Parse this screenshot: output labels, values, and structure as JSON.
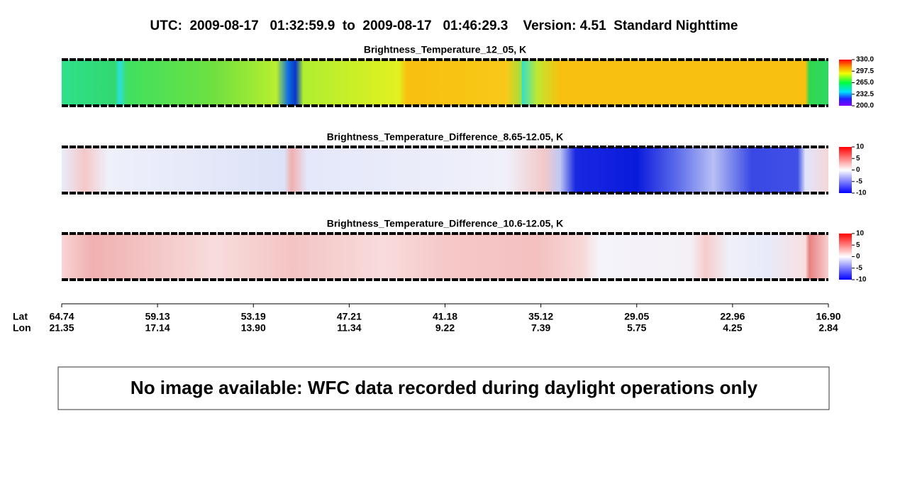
{
  "title": "UTC:  2009-08-17   01:32:59.9  to  2009-08-17   01:46:29.3    Version: 4.51  Standard Nighttime",
  "panels": [
    {
      "title": "Brightness_Temperature_12_05, K",
      "clim": [
        200,
        330
      ],
      "cticks": [
        {
          "value": 330,
          "label": "330.0"
        },
        297.5,
        {
          "value": 265,
          "label": "265.0"
        },
        232.5,
        {
          "value": 200,
          "label": "200.0"
        }
      ]
    },
    {
      "title": "Brightness_Temperature_Difference_8.65-12.05, K",
      "clim": [
        -10,
        10
      ],
      "cticks": [
        10,
        5,
        0,
        -5,
        -10
      ]
    },
    {
      "title": "Brightness_Temperature_Difference_10.6-12.05, K",
      "clim": [
        -10,
        10
      ],
      "cticks": [
        10,
        5,
        0,
        -5,
        -10
      ]
    }
  ],
  "axis": {
    "row_labels": [
      "Lat",
      "Lon"
    ],
    "lat": [
      "64.74",
      "59.13",
      "53.19",
      "47.21",
      "41.18",
      "35.12",
      "29.05",
      "22.96",
      "16.90"
    ],
    "lon": [
      "21.35",
      "17.14",
      "13.90",
      "11.34",
      "9.22",
      "7.39",
      "5.75",
      "4.25",
      "2.84"
    ]
  },
  "message": "No image available: WFC data recorded during daylight operations only"
}
